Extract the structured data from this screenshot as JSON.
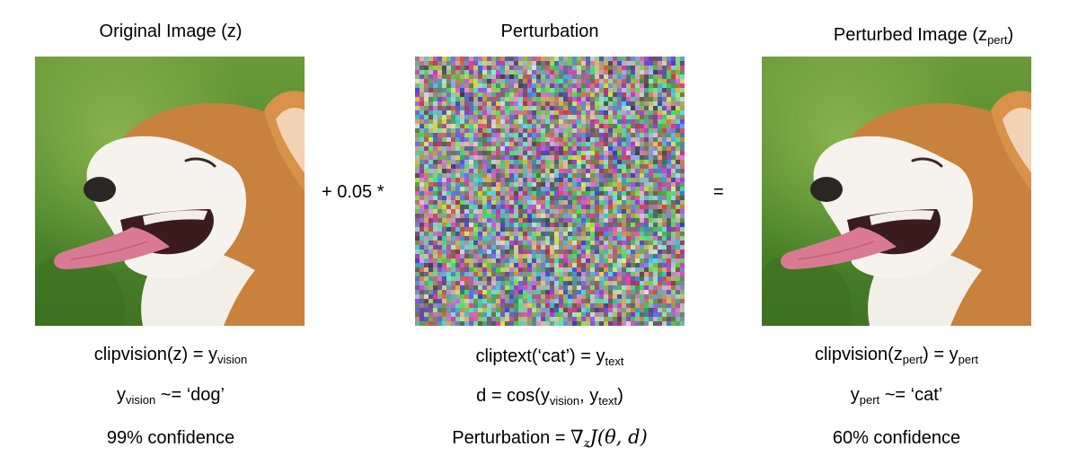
{
  "columns": {
    "original": {
      "title": "Original Image (z)",
      "line1": {
        "prefix": "clipvision(z) = y",
        "sub": "vision"
      },
      "line2": {
        "prefix": "y",
        "sub": "vision",
        "suffix": " ~= ‘dog’"
      },
      "line3": "99% confidence"
    },
    "perturbation": {
      "title": "Perturbation",
      "line1": {
        "prefix": "cliptext(‘cat’) = y",
        "sub": "text"
      },
      "line2": {
        "prefix": "d = cos(y",
        "sub1": "vision",
        "mid": ", y",
        "sub2": "text",
        "suffix": ")"
      },
      "line3": {
        "label": "Perturbation = ",
        "nabla": "∇",
        "nabla_sub": "z",
        "expr": "J(θ, d)"
      }
    },
    "perturbed": {
      "title": {
        "prefix": "Perturbed Image (z",
        "sub": "pert",
        "suffix": ")"
      },
      "line1": {
        "prefix": "clipvision(z",
        "sub1": "pert",
        "mid": ") = y",
        "sub2": "pert"
      },
      "line2": {
        "prefix": "y",
        "sub": "pert",
        "suffix": " ~= ‘cat’"
      },
      "line3": "60% confidence"
    }
  },
  "operators": {
    "plus": "+ 0.05 *",
    "equals": "="
  },
  "images": {
    "original": "corgi-photo",
    "noise": "random-noise-perturbation",
    "perturbed": "corgi-photo-perturbed"
  }
}
